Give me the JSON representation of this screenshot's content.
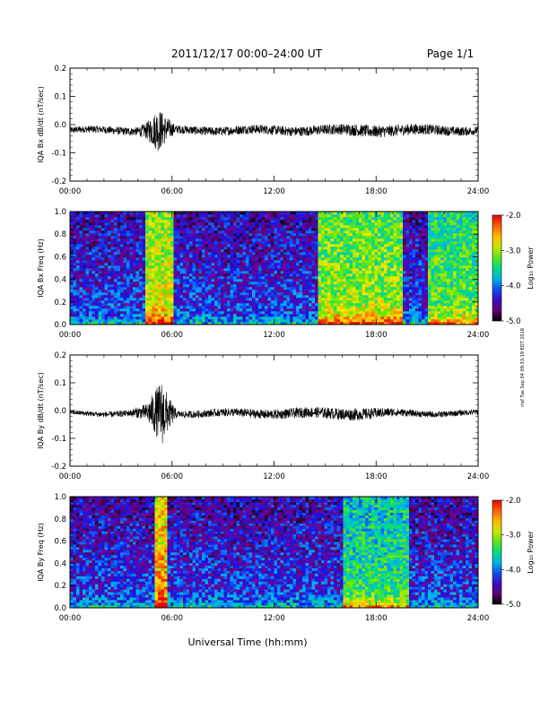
{
  "header": {
    "title": "2011/12/17   00:00–24:00 UT",
    "page": "Page 1/1"
  },
  "side_note": "rref Tue Sep 04 09:33:19 EDT 2018",
  "x_axis_title": "Universal Time (hh:mm)",
  "chart_data": [
    {
      "type": "line",
      "id": "bx-dbdt",
      "ylabel": "IQA Bx dB/dt (nT/sec)",
      "xlim": [
        0,
        24
      ],
      "ylim": [
        -0.2,
        0.2
      ],
      "x_tick_labels": [
        "00:00",
        "06:00",
        "12:00",
        "18:00",
        "24:00"
      ],
      "y_tick_labels": [
        "-0.2",
        "-0.1",
        "0.0",
        "0.1",
        "0.2"
      ],
      "baseline": -0.02,
      "noise_amplitude_profile": [
        {
          "hour": 0,
          "amp": 0.012
        },
        {
          "hour": 4,
          "amp": 0.015
        },
        {
          "hour": 4.5,
          "amp": 0.03
        },
        {
          "hour": 5.2,
          "amp": 0.08
        },
        {
          "hour": 5.6,
          "amp": 0.05
        },
        {
          "hour": 6.2,
          "amp": 0.015
        },
        {
          "hour": 15,
          "amp": 0.018
        },
        {
          "hour": 17,
          "amp": 0.022
        },
        {
          "hour": 20,
          "amp": 0.02
        },
        {
          "hour": 24,
          "amp": 0.015
        }
      ]
    },
    {
      "type": "heatmap",
      "id": "bx-spectrogram",
      "ylabel": "IQA Bx Freq (Hz)",
      "xlim": [
        0,
        24
      ],
      "ylim": [
        0,
        1.0
      ],
      "x_tick_labels": [
        "00:00",
        "06:00",
        "12:00",
        "18:00",
        "24:00"
      ],
      "y_tick_labels": [
        "0.0",
        "0.2",
        "0.4",
        "0.6",
        "0.8",
        "1.0"
      ],
      "colorbar": {
        "label": "Log₁₀ Power",
        "range": [
          -5.0,
          -2.0
        ],
        "tick_labels": [
          "-5.0",
          "-4.0",
          "-3.0",
          "-2.0"
        ]
      },
      "enhanced_intervals": [
        {
          "start": 4.5,
          "end": 6.0,
          "level": -2.8
        },
        {
          "start": 14.5,
          "end": 19.5,
          "level": -3.0
        },
        {
          "start": 21,
          "end": 24,
          "level": -3.2
        }
      ]
    },
    {
      "type": "line",
      "id": "by-dbdt",
      "ylabel": "IQA By dB/dt (nT/sec)",
      "xlim": [
        0,
        24
      ],
      "ylim": [
        -0.2,
        0.2
      ],
      "x_tick_labels": [
        "00:00",
        "06:00",
        "12:00",
        "18:00",
        "24:00"
      ],
      "y_tick_labels": [
        "-0.2",
        "-0.1",
        "0.0",
        "0.1",
        "0.2"
      ],
      "baseline": -0.01,
      "noise_amplitude_profile": [
        {
          "hour": 0,
          "amp": 0.008
        },
        {
          "hour": 3.5,
          "amp": 0.012
        },
        {
          "hour": 4.5,
          "amp": 0.03
        },
        {
          "hour": 5.4,
          "amp": 0.12
        },
        {
          "hour": 5.8,
          "amp": 0.06
        },
        {
          "hour": 6.3,
          "amp": 0.012
        },
        {
          "hour": 17,
          "amp": 0.022
        },
        {
          "hour": 20,
          "amp": 0.012
        },
        {
          "hour": 24,
          "amp": 0.01
        }
      ]
    },
    {
      "type": "heatmap",
      "id": "by-spectrogram",
      "ylabel": "IQA By Freq (Hz)",
      "xlim": [
        0,
        24
      ],
      "ylim": [
        0,
        1.0
      ],
      "x_tick_labels": [
        "00:00",
        "06:00",
        "12:00",
        "18:00",
        "24:00"
      ],
      "y_tick_labels": [
        "0.0",
        "0.2",
        "0.4",
        "0.6",
        "0.8",
        "1.0"
      ],
      "colorbar": {
        "label": "Log₁₀ Power",
        "range": [
          -5.0,
          -2.0
        ],
        "tick_labels": [
          "-5.0",
          "-4.0",
          "-3.0",
          "-2.0"
        ]
      },
      "enhanced_intervals": [
        {
          "start": 5.0,
          "end": 5.8,
          "level": -2.5
        },
        {
          "start": 16,
          "end": 20,
          "level": -3.4
        }
      ]
    }
  ]
}
